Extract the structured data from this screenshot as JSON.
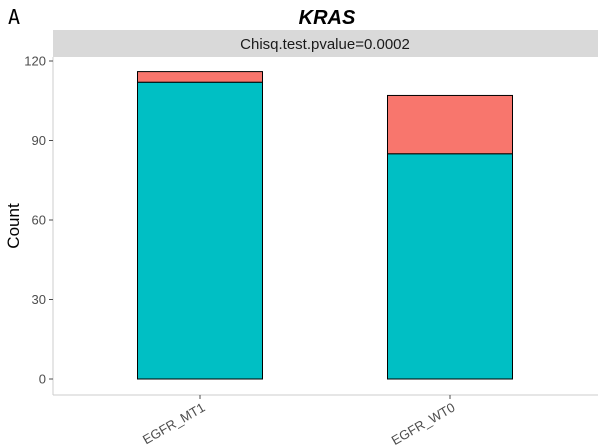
{
  "panel_tag": "A",
  "chart_data": {
    "type": "bar",
    "stacked": true,
    "title": "KRAS",
    "subtitle": "Chisq.test.pvalue=0.0002",
    "ylabel": "Count",
    "xlabel": "",
    "categories": [
      "EGFR_MT1",
      "EGFR_WT0"
    ],
    "series": [
      {
        "values": [
          112,
          85
        ],
        "color": "#00BFC4"
      },
      {
        "values": [
          4,
          22
        ],
        "color": "#F8766D"
      }
    ],
    "ylim": [
      0,
      120
    ],
    "yticks": [
      "0",
      "30",
      "60",
      "90",
      "120"
    ],
    "grid": false
  }
}
